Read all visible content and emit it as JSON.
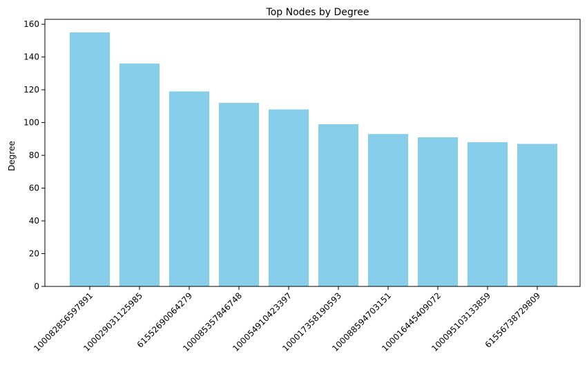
{
  "chart_data": {
    "type": "bar",
    "title": "Top Nodes by Degree",
    "xlabel": "",
    "ylabel": "Degree",
    "categories": [
      "100082856597891",
      "100029031125985",
      "61552690064279",
      "100085357846748",
      "100054910423397",
      "100017358190593",
      "100088594703151",
      "100016445409072",
      "100095103133859",
      "61556738729809"
    ],
    "values": [
      155,
      136,
      119,
      112,
      108,
      99,
      93,
      91,
      88,
      87
    ],
    "ylim": [
      0,
      163
    ],
    "yticks": [
      0,
      20,
      40,
      60,
      80,
      100,
      120,
      140,
      160
    ],
    "bar_color": "#87CEEB",
    "grid": false,
    "legend": "none"
  }
}
